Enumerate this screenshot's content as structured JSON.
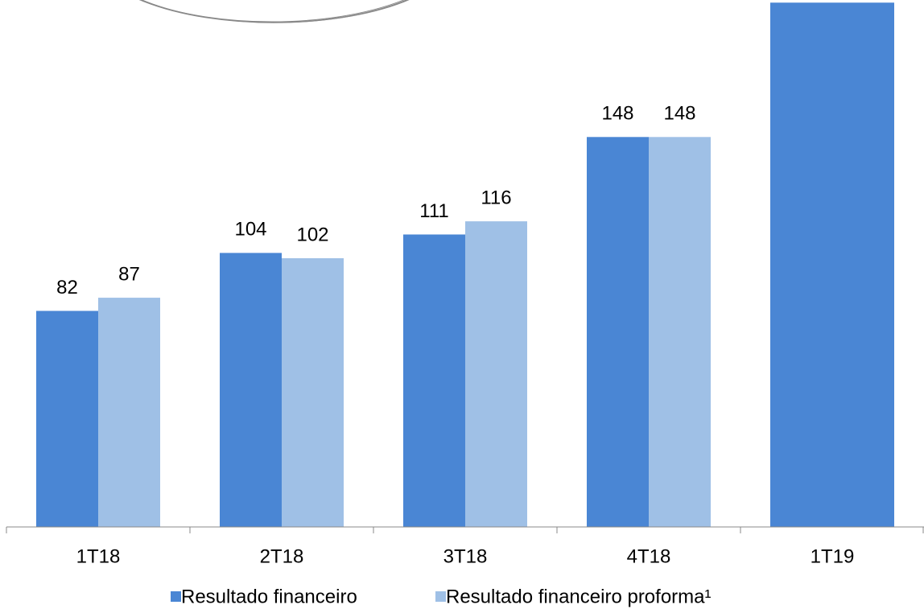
{
  "chart_data": {
    "type": "bar",
    "categories": [
      "1T18",
      "2T18",
      "3T18",
      "4T18",
      "1T19"
    ],
    "series": [
      {
        "name": "Resultado financeiro",
        "color": "#4a86d4",
        "values": [
          82,
          104,
          111,
          148,
          199
        ]
      },
      {
        "name": "Resultado financeiro proforma¹",
        "color": "#9fc0e6",
        "values": [
          87,
          102,
          116,
          148,
          null
        ]
      }
    ],
    "ylim": [
      0,
      200
    ],
    "legend": "bottom"
  }
}
